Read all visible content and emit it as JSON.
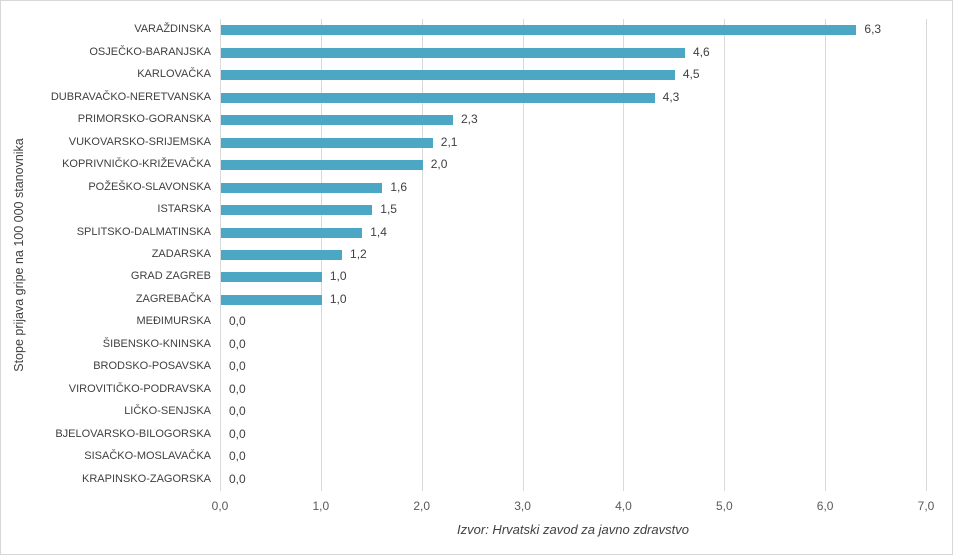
{
  "chart_data": {
    "type": "bar",
    "orientation": "horizontal",
    "title": "",
    "ylabel": "Stope prijava gripe na 100 000 stanovnika",
    "xlabel": "",
    "source": "Izvor: Hrvatski zavod za javno zdravstvo",
    "xlim": [
      0,
      7
    ],
    "x_ticks": [
      "0,0",
      "1,0",
      "2,0",
      "3,0",
      "4,0",
      "5,0",
      "6,0",
      "7,0"
    ],
    "grid": "vertical-on",
    "legend": "none",
    "categories": [
      "VARAŽDINSKA",
      "OSJEČKO-BARANJSKA",
      "KARLOVAČKA",
      "DUBRAVAČKO-NERETVANSKA",
      "PRIMORSKO-GORANSKA",
      "VUKOVARSKO-SRIJEMSKA",
      "KOPRIVNIČKO-KRIŽEVAČKA",
      "POŽEŠKO-SLAVONSKA",
      "ISTARSKA",
      "SPLITSKO-DALMATINSKA",
      "ZADARSKA",
      "GRAD ZAGREB",
      "ZAGREBAČKA",
      "MEĐIMURSKA",
      "ŠIBENSKO-KNINSKA",
      "BRODSKO-POSAVSKA",
      "VIROVITIČKO-PODRAVSKA",
      "LIČKO-SENJSKA",
      "BJELOVARSKO-BILOGORSKA",
      "SISAČKO-MOSLAVAČKA",
      "KRAPINSKO-ZAGORSKA"
    ],
    "values": [
      6.3,
      4.6,
      4.5,
      4.3,
      2.3,
      2.1,
      2.0,
      1.6,
      1.5,
      1.4,
      1.2,
      1.0,
      1.0,
      0.0,
      0.0,
      0.0,
      0.0,
      0.0,
      0.0,
      0.0,
      0.0
    ],
    "value_labels": [
      "6,3",
      "4,6",
      "4,5",
      "4,3",
      "2,3",
      "2,1",
      "2,0",
      "1,6",
      "1,5",
      "1,4",
      "1,2",
      "1,0",
      "1,0",
      "0,0",
      "0,0",
      "0,0",
      "0,0",
      "0,0",
      "0,0",
      "0,0",
      "0,0"
    ],
    "colors": {
      "bar": "#4BA7C4",
      "gridline": "#d9d9d9",
      "axis_text": "#595959",
      "label_text": "#404040",
      "frame_border": "#d7d7d7",
      "background": "#ffffff"
    }
  }
}
